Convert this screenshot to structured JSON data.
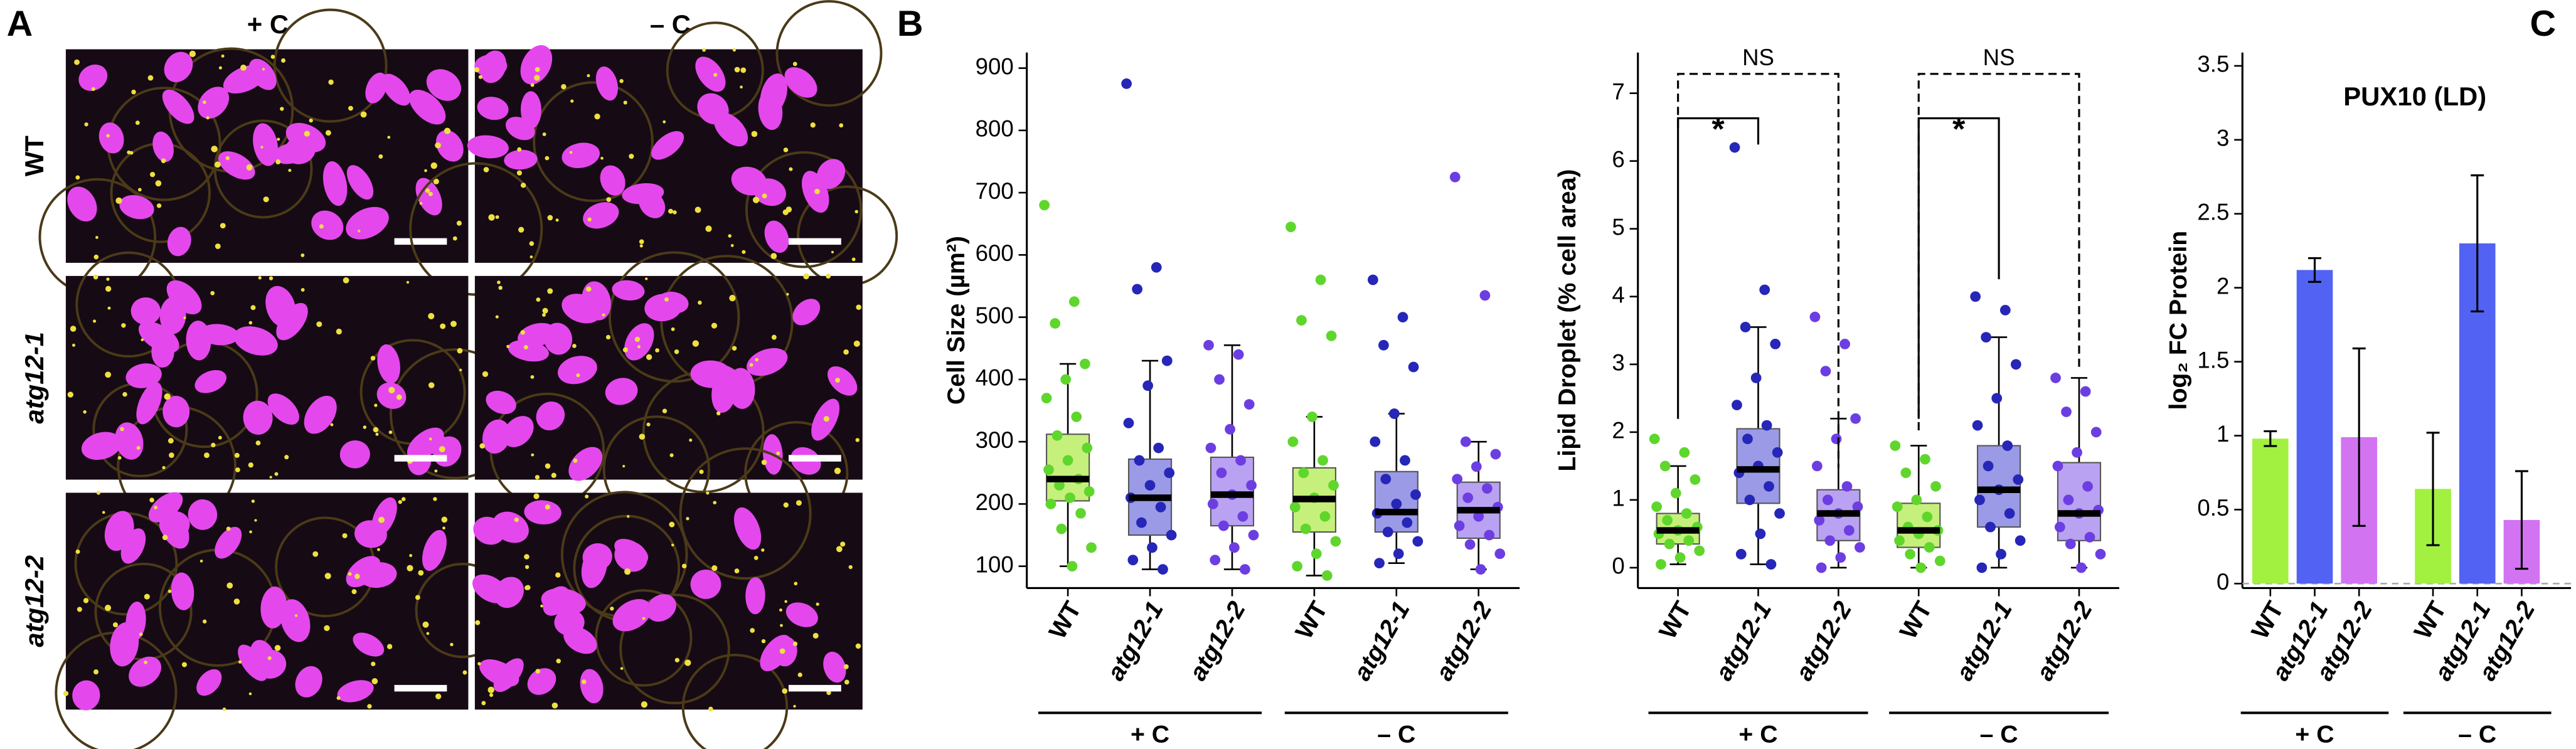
{
  "panel_labels": {
    "a": "A",
    "b": "B",
    "c": "C"
  },
  "micrographs": {
    "columns": [
      "+ C",
      "– C"
    ],
    "rows": [
      "WT",
      "atg12-1",
      "atg12-2"
    ]
  },
  "chart_data": [
    {
      "type": "box",
      "ylabel": "Cell Size (µm²)",
      "categories": [
        "WT",
        "atg12-1",
        "atg12-2",
        "WT",
        "atg12-1",
        "atg12-2"
      ],
      "groups": [
        "+ C",
        "– C"
      ],
      "box_colors": [
        "#c6f07c",
        "#9a9ae6",
        "#b9a2f2",
        "#c6f07c",
        "#9a9ae6",
        "#b9a2f2"
      ],
      "point_colors": [
        "#5fd62c",
        "#2626b8",
        "#6c3ee2",
        "#5fd62c",
        "#2626b8",
        "#6c3ee2"
      ],
      "ylim": [
        65,
        925
      ],
      "yticks": [
        100,
        200,
        300,
        400,
        500,
        600,
        700,
        800,
        900
      ],
      "boxes": [
        {
          "min": 100,
          "q1": 205,
          "median": 240,
          "q3": 312,
          "max": 425,
          "points": [
            680,
            525,
            490,
            425,
            400,
            370,
            340,
            310,
            290,
            270,
            255,
            240,
            230,
            220,
            210,
            200,
            185,
            160,
            130,
            100
          ]
        },
        {
          "min": 95,
          "q1": 150,
          "median": 210,
          "q3": 272,
          "max": 430,
          "points": [
            875,
            580,
            545,
            430,
            390,
            330,
            290,
            270,
            250,
            230,
            210,
            195,
            170,
            150,
            130,
            110,
            95
          ]
        },
        {
          "min": 95,
          "q1": 165,
          "median": 215,
          "q3": 275,
          "max": 455,
          "points": [
            455,
            440,
            400,
            360,
            320,
            290,
            270,
            250,
            230,
            215,
            200,
            180,
            165,
            150,
            130,
            110,
            95
          ]
        },
        {
          "min": 85,
          "q1": 155,
          "median": 208,
          "q3": 258,
          "max": 340,
          "points": [
            645,
            560,
            495,
            470,
            340,
            300,
            270,
            250,
            230,
            210,
            195,
            180,
            160,
            140,
            120,
            100,
            85
          ]
        },
        {
          "min": 105,
          "q1": 155,
          "median": 187,
          "q3": 252,
          "max": 345,
          "points": [
            560,
            500,
            455,
            420,
            345,
            300,
            270,
            240,
            215,
            200,
            185,
            170,
            155,
            140,
            120,
            105
          ]
        },
        {
          "min": 95,
          "q1": 145,
          "median": 190,
          "q3": 235,
          "max": 300,
          "points": [
            725,
            535,
            300,
            280,
            260,
            240,
            225,
            210,
            195,
            180,
            165,
            150,
            135,
            120,
            95
          ]
        }
      ]
    },
    {
      "type": "box",
      "ylabel": "Lipid Droplet (% cell area)",
      "categories": [
        "WT",
        "atg12-1",
        "atg12-2",
        "WT",
        "atg12-1",
        "atg12-2"
      ],
      "groups": [
        "+ C",
        "– C"
      ],
      "annotations": [
        "NS",
        "*",
        "NS",
        "*"
      ],
      "box_colors": [
        "#c6f07c",
        "#9a9ae6",
        "#b9a2f2",
        "#c6f07c",
        "#9a9ae6",
        "#b9a2f2"
      ],
      "point_colors": [
        "#5fd62c",
        "#2626b8",
        "#6c3ee2",
        "#5fd62c",
        "#2626b8",
        "#6c3ee2"
      ],
      "ylim": [
        -0.3,
        7.6
      ],
      "yticks": [
        0,
        1,
        2,
        3,
        4,
        5,
        6,
        7
      ],
      "boxes": [
        {
          "min": 0.05,
          "q1": 0.35,
          "median": 0.55,
          "q3": 0.8,
          "max": 1.5,
          "points": [
            1.9,
            1.7,
            1.5,
            1.3,
            1.1,
            0.9,
            0.8,
            0.7,
            0.6,
            0.55,
            0.5,
            0.4,
            0.35,
            0.25,
            0.15,
            0.05
          ]
        },
        {
          "min": 0.05,
          "q1": 0.95,
          "median": 1.45,
          "q3": 2.05,
          "max": 3.55,
          "points": [
            6.2,
            4.1,
            3.55,
            3.3,
            2.8,
            2.4,
            2.1,
            1.9,
            1.7,
            1.5,
            1.4,
            1.2,
            1.0,
            0.8,
            0.5,
            0.2,
            0.05
          ]
        },
        {
          "min": 0.0,
          "q1": 0.4,
          "median": 0.8,
          "q3": 1.15,
          "max": 2.2,
          "points": [
            3.7,
            3.3,
            2.9,
            2.2,
            1.9,
            1.5,
            1.2,
            1.0,
            0.9,
            0.8,
            0.7,
            0.55,
            0.4,
            0.3,
            0.15,
            0.0
          ]
        },
        {
          "min": 0.0,
          "q1": 0.3,
          "median": 0.55,
          "q3": 0.95,
          "max": 1.8,
          "points": [
            1.8,
            1.6,
            1.4,
            1.2,
            1.0,
            0.9,
            0.75,
            0.6,
            0.55,
            0.5,
            0.4,
            0.3,
            0.2,
            0.1,
            0.0
          ]
        },
        {
          "min": 0.0,
          "q1": 0.6,
          "median": 1.15,
          "q3": 1.8,
          "max": 3.4,
          "points": [
            4.0,
            3.8,
            3.4,
            3.0,
            2.5,
            2.1,
            1.8,
            1.5,
            1.3,
            1.15,
            1.0,
            0.8,
            0.6,
            0.4,
            0.2,
            0.0
          ]
        },
        {
          "min": 0.0,
          "q1": 0.4,
          "median": 0.8,
          "q3": 1.55,
          "max": 2.8,
          "points": [
            2.8,
            2.6,
            2.3,
            2.0,
            1.7,
            1.5,
            1.2,
            1.0,
            0.85,
            0.8,
            0.6,
            0.45,
            0.35,
            0.2,
            0.0
          ]
        }
      ]
    },
    {
      "type": "bar",
      "title": "PUX10 (LD)",
      "ylabel": "log₂ FC Protein",
      "categories": [
        "WT",
        "atg12-1",
        "atg12-2",
        "WT",
        "atg12-1",
        "atg12-2"
      ],
      "groups": [
        "+ C",
        "– C"
      ],
      "values": [
        0.98,
        2.12,
        0.99,
        0.64,
        2.3,
        0.43
      ],
      "errors": [
        0.05,
        0.08,
        0.6,
        0.38,
        0.46,
        0.33
      ],
      "colors": [
        "#a2f040",
        "#5262f2",
        "#d274f2",
        "#a2f040",
        "#5262f2",
        "#d274f2"
      ],
      "ylim": [
        -0.03,
        3.59
      ],
      "yticks": [
        0,
        0.5,
        1,
        1.5,
        2,
        2.5,
        3,
        3.5
      ]
    }
  ]
}
